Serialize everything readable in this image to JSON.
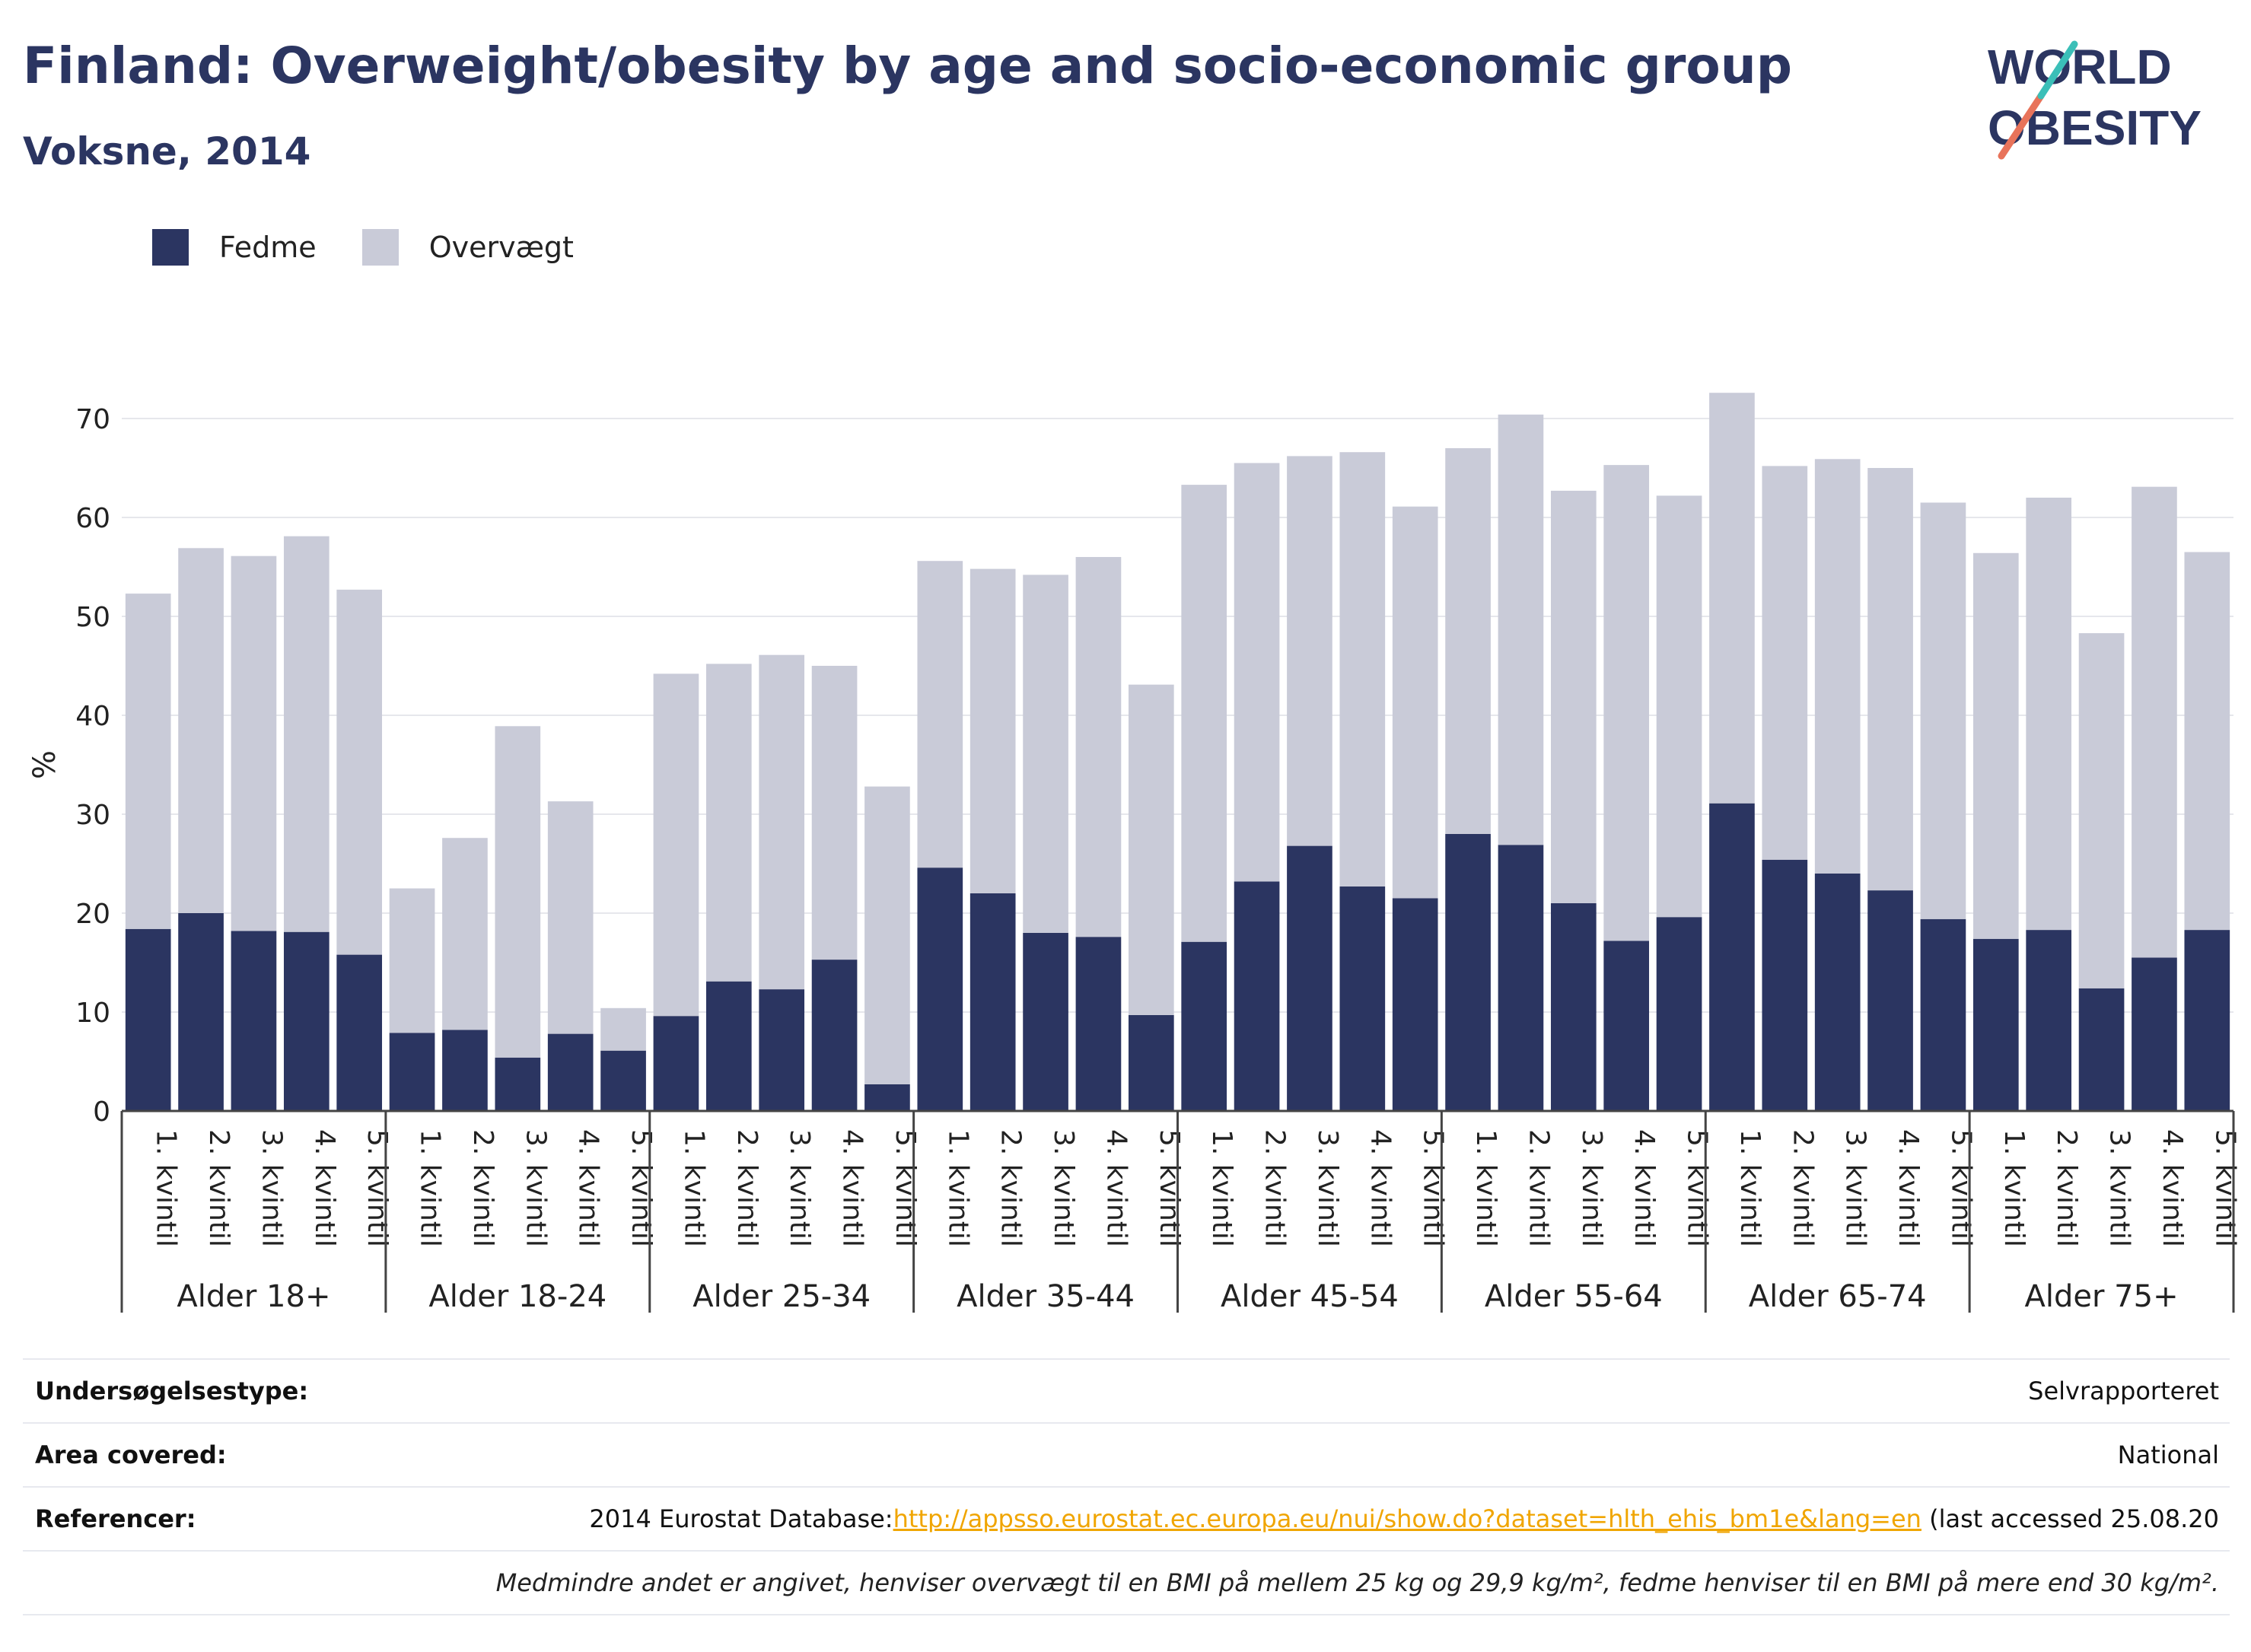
{
  "title": "Finland: Overweight/obesity by age and socio-economic group",
  "subtitle": "Voksne, 2014",
  "logo": {
    "line1": "WORLD",
    "line2": "OBESITY"
  },
  "legend": [
    {
      "label": "Fedme",
      "color": "#2b3561"
    },
    {
      "label": "Overvægt",
      "color": "#c9cbd8"
    }
  ],
  "info": {
    "survey_label": "Undersøgelsestype:",
    "survey_value": "Selvrapporteret",
    "area_label": "Area covered:",
    "area_value": "National",
    "ref_label": "Referencer:",
    "ref_prefix": "2014 Eurostat Database:",
    "ref_link": "http://appsso.eurostat.ec.europa.eu/nui/show.do?dataset=hlth_ehis_bm1e&lang=en",
    "ref_suffix": " (last accessed 25.08.20",
    "note": "Medmindre andet er angivet, henviser overvægt til en BMI på mellem 25 kg og 29,9 kg/m², fedme henviser til en BMI på mere end 30 kg/m²."
  },
  "chart_data": {
    "type": "bar",
    "stacked": true,
    "ylabel": "%",
    "ylim": [
      0,
      80
    ],
    "yticks": [
      0,
      10,
      20,
      30,
      40,
      50,
      60,
      70
    ],
    "grid": true,
    "legend_position": "top-left",
    "quintiles": [
      "1. kvintil",
      "2. kvintil",
      "3. kvintil",
      "4. kvintil",
      "5. kvintil"
    ],
    "groups": [
      "Alder 18+",
      "Alder 18-24",
      "Alder 25-34",
      "Alder 35-44",
      "Alder 45-54",
      "Alder 55-64",
      "Alder 65-74",
      "Alder 75+"
    ],
    "series": [
      {
        "name": "Fedme",
        "color": "#2b3561",
        "values": [
          18.4,
          20.0,
          18.2,
          18.1,
          15.8,
          7.9,
          8.2,
          5.4,
          7.8,
          6.1,
          9.6,
          13.1,
          12.3,
          15.3,
          2.7,
          24.6,
          22.0,
          18.0,
          17.6,
          9.7,
          17.1,
          23.2,
          26.8,
          22.7,
          21.5,
          28.0,
          26.9,
          21.0,
          17.2,
          19.6,
          31.1,
          25.4,
          24.0,
          22.3,
          19.4,
          17.4,
          18.3,
          12.4,
          15.5,
          18.3
        ]
      },
      {
        "name": "Overvægt",
        "color": "#c9cbd8",
        "values": [
          33.9,
          36.9,
          37.9,
          40.0,
          36.9,
          14.6,
          19.4,
          33.5,
          23.5,
          4.3,
          34.6,
          32.1,
          33.8,
          29.7,
          30.1,
          31.0,
          32.8,
          36.2,
          38.4,
          33.4,
          46.2,
          42.3,
          39.4,
          43.9,
          39.6,
          39.0,
          43.5,
          41.7,
          48.1,
          42.6,
          41.5,
          39.8,
          41.9,
          42.7,
          42.1,
          39.0,
          43.7,
          35.9,
          47.6,
          38.2
        ]
      }
    ]
  }
}
